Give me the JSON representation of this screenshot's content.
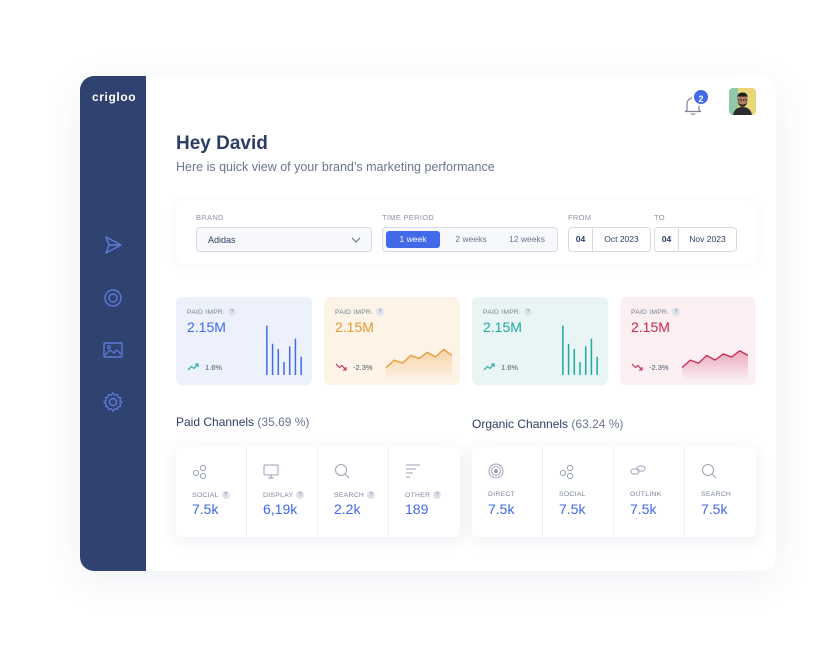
{
  "app": {
    "logo": "crigloo"
  },
  "header": {
    "notification_count": "2"
  },
  "greeting": {
    "title": "Hey David",
    "subtitle": "Here is quick view of your brand’s marketing performance"
  },
  "filters": {
    "brand_label": "BRAND",
    "brand_value": "Adidas",
    "period_label": "TIME PERIOD",
    "period_options": [
      "1 week",
      "2 weeks",
      "12 weeks"
    ],
    "period_selected": "1 week",
    "from_label": "FROM",
    "from_day": "04",
    "from_month": "Oct 2023",
    "to_label": "TO",
    "to_day": "04",
    "to_month": "Nov 2023"
  },
  "stats": [
    {
      "label": "PAID IMPR.",
      "value": "2.15M",
      "change": "1.6%",
      "direction": "up",
      "color": "#4169e8",
      "bg": "#edf1fb",
      "chart_type": "bars",
      "chart": [
        0.95,
        0.6,
        0.5,
        0.25,
        0.55,
        0.7,
        0.35
      ]
    },
    {
      "label": "PAID IMPR.",
      "value": "2.15M",
      "change": "-2.3%",
      "direction": "down",
      "color": "#e8962f",
      "bg": "#fdf3e7",
      "chart_type": "area",
      "chart": [
        0.3,
        0.55,
        0.45,
        0.7,
        0.6,
        0.8,
        0.65,
        0.9,
        0.7
      ]
    },
    {
      "label": "PAID IMPR.",
      "value": "2.15M",
      "change": "1.6%",
      "direction": "up",
      "color": "#1fa8a0",
      "bg": "#e9f5f5",
      "chart_type": "bars",
      "chart": [
        0.95,
        0.6,
        0.5,
        0.25,
        0.55,
        0.7,
        0.35
      ]
    },
    {
      "label": "PAID IMPR.",
      "value": "2.15M",
      "change": "-2.3%",
      "direction": "down",
      "color": "#c8285a",
      "bg": "#fbeff2",
      "chart_type": "area",
      "chart": [
        0.3,
        0.55,
        0.45,
        0.7,
        0.55,
        0.75,
        0.65,
        0.85,
        0.7
      ]
    }
  ],
  "paid_channels": {
    "title": "Paid Channels",
    "percent": "(35.69 %)",
    "items": [
      {
        "label": "SOCIAL",
        "value": "7.5k",
        "icon": "social-icon",
        "help": true
      },
      {
        "label": "DISPLAY",
        "value": "6,19k",
        "icon": "display-icon",
        "help": true
      },
      {
        "label": "SEARCH",
        "value": "2.2k",
        "icon": "search-icon",
        "help": true
      },
      {
        "label": "OTHER",
        "value": "189",
        "icon": "other-icon",
        "help": true
      }
    ]
  },
  "organic_channels": {
    "title": "Organic Channels",
    "percent": "(63.24 %)",
    "items": [
      {
        "label": "DIRECT",
        "value": "7.5k",
        "icon": "direct-icon",
        "help": false
      },
      {
        "label": "SOCIAL",
        "value": "7.5k",
        "icon": "social-icon",
        "help": false
      },
      {
        "label": "OUTLINK",
        "value": "7.5k",
        "icon": "outlink-icon",
        "help": false
      },
      {
        "label": "SEARCH",
        "value": "7.5k",
        "icon": "search-icon",
        "help": false
      }
    ]
  },
  "colors": {
    "sidebar": "#2f4270",
    "accent": "#4169e8",
    "text": "#2c3e66"
  }
}
